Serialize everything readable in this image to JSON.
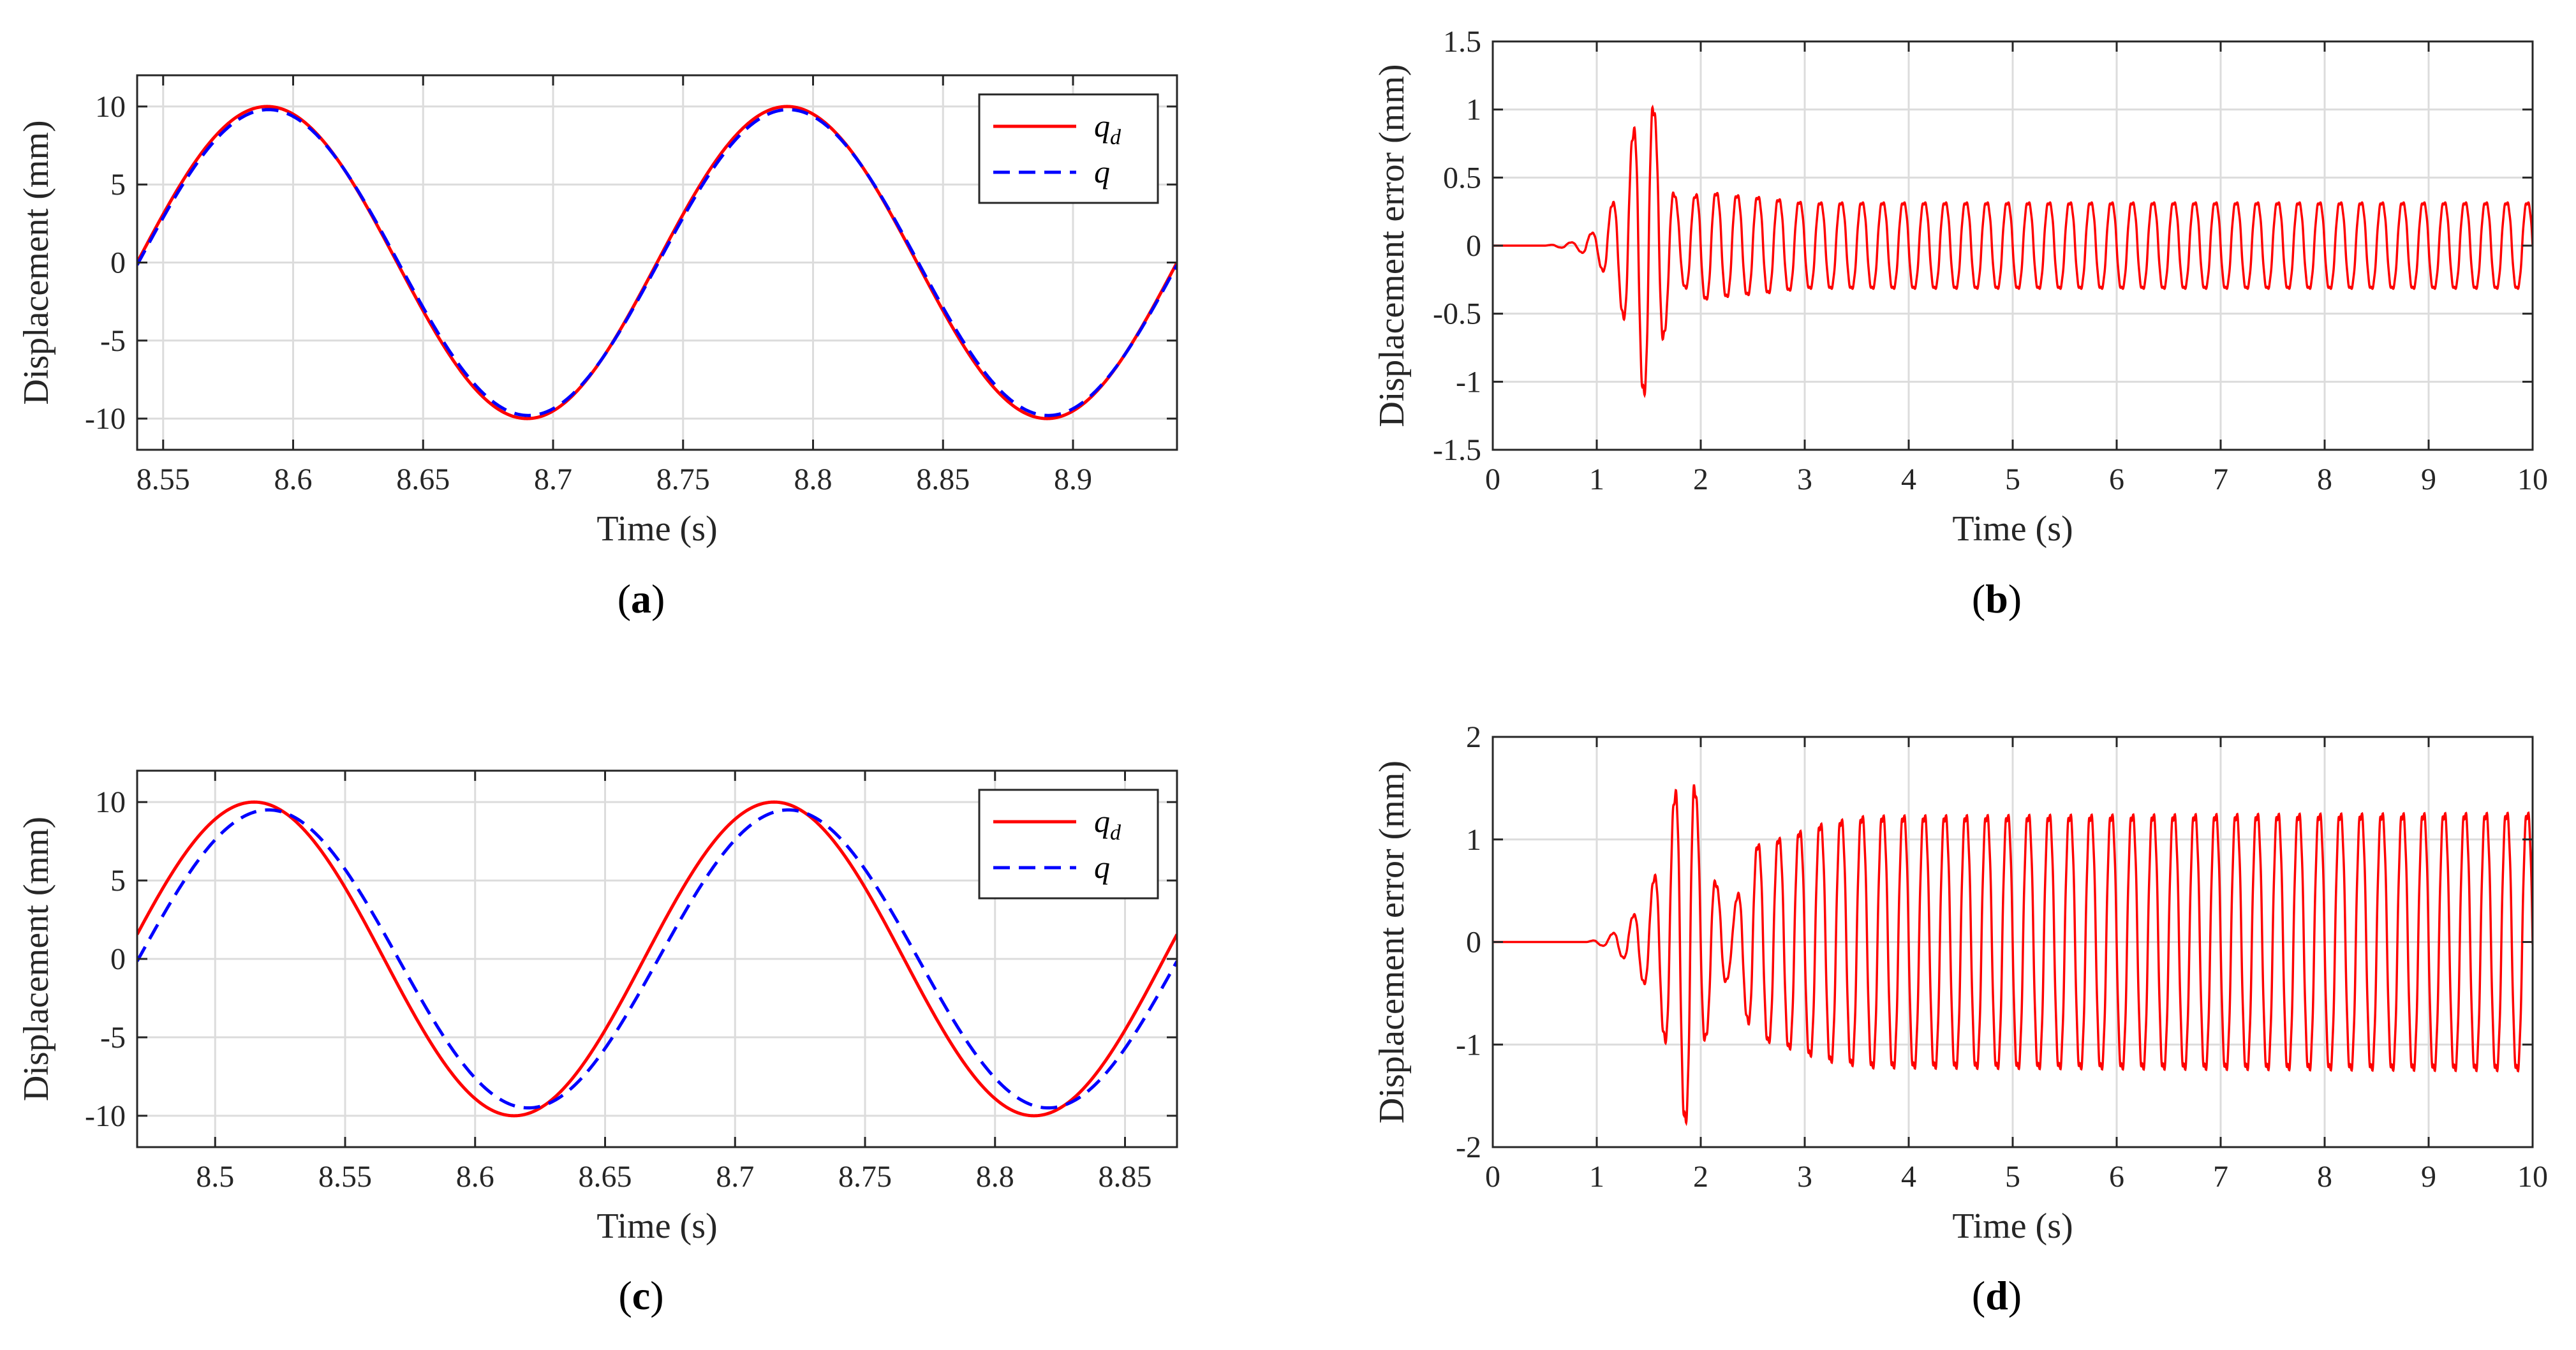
{
  "colors": {
    "reference": "#ff0000",
    "actual": "#0000ff",
    "axis": "#262626",
    "grid": "#dcdcdc"
  },
  "chart_data": [
    {
      "id": "a",
      "type": "line",
      "panel_label": {
        "open": "(",
        "letter": "a",
        "close": ")"
      },
      "xlabel": "Time (s)",
      "ylabel": "Displacement (mm)",
      "xlim": [
        8.54,
        8.94
      ],
      "ylim": [
        -12,
        12
      ],
      "xticks": [
        8.55,
        8.6,
        8.65,
        8.7,
        8.75,
        8.8,
        8.85,
        8.9
      ],
      "xtick_labels": [
        "8.55",
        "8.6",
        "8.65",
        "8.7",
        "8.75",
        "8.8",
        "8.85",
        "8.9"
      ],
      "yticks": [
        -10,
        -5,
        0,
        5,
        10
      ],
      "ytick_labels": [
        "-10",
        "-5",
        "0",
        "5",
        "10"
      ],
      "grid": true,
      "legend": {
        "position": "top-right",
        "entries": [
          {
            "main": "q",
            "sub": "d",
            "color": "#ff0000",
            "style": "solid"
          },
          {
            "main": "q",
            "sub": "",
            "color": "#0000ff",
            "style": "dashed"
          }
        ]
      },
      "series": [
        {
          "name": "q_d",
          "color": "#ff0000",
          "style": "solid",
          "function": "sine",
          "amplitude": 10,
          "frequency": 5,
          "zero_crossing": 8.54
        },
        {
          "name": "q",
          "color": "#0000ff",
          "style": "dashed",
          "function": "sine",
          "amplitude": 9.8,
          "frequency": 5,
          "zero_crossing": 8.5405
        }
      ]
    },
    {
      "id": "b",
      "type": "line",
      "panel_label": {
        "open": "(",
        "letter": "b",
        "close": ")"
      },
      "xlabel": "Time (s)",
      "ylabel": "Displacement error (mm)",
      "xlim": [
        0,
        10
      ],
      "ylim": [
        -1.5,
        1.5
      ],
      "xticks": [
        0,
        1,
        2,
        3,
        4,
        5,
        6,
        7,
        8,
        9,
        10
      ],
      "xtick_labels": [
        "0",
        "1",
        "2",
        "3",
        "4",
        "5",
        "6",
        "7",
        "8",
        "9",
        "10"
      ],
      "yticks": [
        -1.5,
        -1,
        -0.5,
        0,
        0.5,
        1,
        1.5
      ],
      "ytick_labels": [
        "-1.5",
        "-1",
        "-0.5",
        "0",
        "0.5",
        "1",
        "1.5"
      ],
      "grid": true,
      "series": [
        {
          "name": "error",
          "color": "#ff0000",
          "style": "solid",
          "function": "oscillation",
          "frequency": 5,
          "onset": 0.5,
          "transient": [
            [
              0.5,
              0
            ],
            [
              0.8,
              0.03
            ],
            [
              1.0,
              0.12
            ],
            [
              1.2,
              0.4
            ],
            [
              1.3,
              0.7
            ],
            [
              1.4,
              1.08
            ],
            [
              1.5,
              1.24
            ],
            [
              1.6,
              0.9
            ],
            [
              1.7,
              0.5
            ],
            [
              1.8,
              0.3
            ],
            [
              2.0,
              0.43
            ],
            [
              2.3,
              0.4
            ],
            [
              2.6,
              0.38
            ],
            [
              3.0,
              0.34
            ],
            [
              10.0,
              0.34
            ]
          ]
        }
      ]
    },
    {
      "id": "c",
      "type": "line",
      "panel_label": {
        "open": "(",
        "letter": "c",
        "close": ")"
      },
      "xlabel": "Time (s)",
      "ylabel": "Displacement (mm)",
      "xlim": [
        8.47,
        8.87
      ],
      "ylim": [
        -12,
        12
      ],
      "xticks": [
        8.5,
        8.55,
        8.6,
        8.65,
        8.7,
        8.75,
        8.8,
        8.85
      ],
      "xtick_labels": [
        "8.5",
        "8.55",
        "8.6",
        "8.65",
        "8.7",
        "8.75",
        "8.8",
        "8.85"
      ],
      "yticks": [
        -10,
        -5,
        0,
        5,
        10
      ],
      "ytick_labels": [
        "-10",
        "-5",
        "0",
        "5",
        "10"
      ],
      "grid": true,
      "legend": {
        "position": "top-right",
        "entries": [
          {
            "main": "q",
            "sub": "d",
            "color": "#ff0000",
            "style": "solid"
          },
          {
            "main": "q",
            "sub": "",
            "color": "#0000ff",
            "style": "dashed"
          }
        ]
      },
      "series": [
        {
          "name": "q_d",
          "color": "#ff0000",
          "style": "solid",
          "function": "sine",
          "amplitude": 10,
          "frequency": 5,
          "zero_crossing": 8.465
        },
        {
          "name": "q",
          "color": "#0000ff",
          "style": "dashed",
          "function": "sine",
          "amplitude": 9.5,
          "frequency": 5,
          "zero_crossing": 8.4705
        }
      ]
    },
    {
      "id": "d",
      "type": "line",
      "panel_label": {
        "open": "(",
        "letter": "d",
        "close": ")"
      },
      "xlabel": "Time (s)",
      "ylabel": "Displacement error (mm)",
      "xlim": [
        0,
        10
      ],
      "ylim": [
        -2,
        2
      ],
      "xticks": [
        0,
        1,
        2,
        3,
        4,
        5,
        6,
        7,
        8,
        9,
        10
      ],
      "xtick_labels": [
        "0",
        "1",
        "2",
        "3",
        "4",
        "5",
        "6",
        "7",
        "8",
        "9",
        "10"
      ],
      "yticks": [
        -2,
        -1,
        0,
        1,
        2
      ],
      "ytick_labels": [
        "-2",
        "-1",
        "0",
        "1",
        "2"
      ],
      "grid": true,
      "series": [
        {
          "name": "error",
          "color": "#ff0000",
          "style": "solid",
          "function": "oscillation",
          "frequency": 5,
          "onset": 0.9,
          "transient": [
            [
              0.9,
              0
            ],
            [
              1.1,
              0.05
            ],
            [
              1.3,
              0.2
            ],
            [
              1.5,
              0.5
            ],
            [
              1.65,
              1.0
            ],
            [
              1.8,
              1.8
            ],
            [
              1.9,
              1.95
            ],
            [
              2.0,
              1.2
            ],
            [
              2.15,
              0.6
            ],
            [
              2.3,
              0.3
            ],
            [
              2.5,
              1.0
            ],
            [
              2.8,
              1.1
            ],
            [
              3.2,
              1.25
            ],
            [
              3.6,
              1.32
            ],
            [
              10.0,
              1.35
            ]
          ]
        }
      ]
    }
  ]
}
